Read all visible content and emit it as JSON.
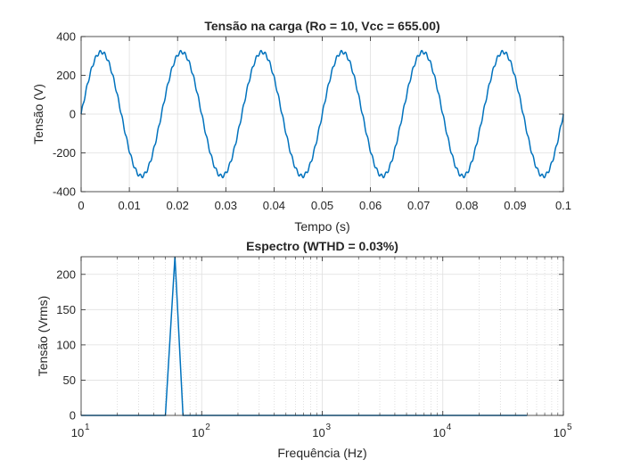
{
  "chart_data": [
    {
      "type": "line",
      "title": "Tensão na carga (Ro = 10, Vcc = 655.00)",
      "xlabel": "Tempo (s)",
      "ylabel": "Tensão (V)",
      "xlim": [
        0,
        0.1
      ],
      "ylim": [
        -400,
        400
      ],
      "xticks": [
        0,
        0.01,
        0.02,
        0.03,
        0.04,
        0.05,
        0.06,
        0.07,
        0.08,
        0.09,
        0.1
      ],
      "xtick_labels": [
        "0",
        "0.01",
        "0.02",
        "0.03",
        "0.04",
        "0.05",
        "0.06",
        "0.07",
        "0.08",
        "0.09",
        "0.1"
      ],
      "yticks": [
        -400,
        -200,
        0,
        200,
        400
      ],
      "ytick_labels": [
        "-400",
        "-200",
        "0",
        "200",
        "400"
      ],
      "grid": true,
      "series": [
        {
          "color": "#0072BD",
          "amplitude": 320,
          "frequency": 60,
          "ripple_amplitude": 9,
          "ripple_frequency": 1080
        }
      ]
    },
    {
      "type": "line",
      "title": "Espectro (WTHD = 0.03%)",
      "xlabel": "Frequência (Hz)",
      "ylabel": "Tensão (Vrms)",
      "xscale": "log",
      "xlim": [
        10,
        100000
      ],
      "ylim": [
        0,
        225
      ],
      "xticks": [
        10,
        100,
        1000,
        10000,
        100000
      ],
      "xtick_bases": [
        "10",
        "10",
        "10",
        "10",
        "10"
      ],
      "xtick_exponents": [
        "1",
        "2",
        "3",
        "4",
        "5"
      ],
      "yticks": [
        0,
        50,
        100,
        150,
        200
      ],
      "ytick_labels": [
        "0",
        "50",
        "100",
        "150",
        "200"
      ],
      "grid": true,
      "series": [
        {
          "color": "#0072BD",
          "x": [
            10,
            50,
            60,
            70,
            50000
          ],
          "y": [
            0,
            0,
            226,
            0,
            0
          ]
        }
      ]
    }
  ]
}
